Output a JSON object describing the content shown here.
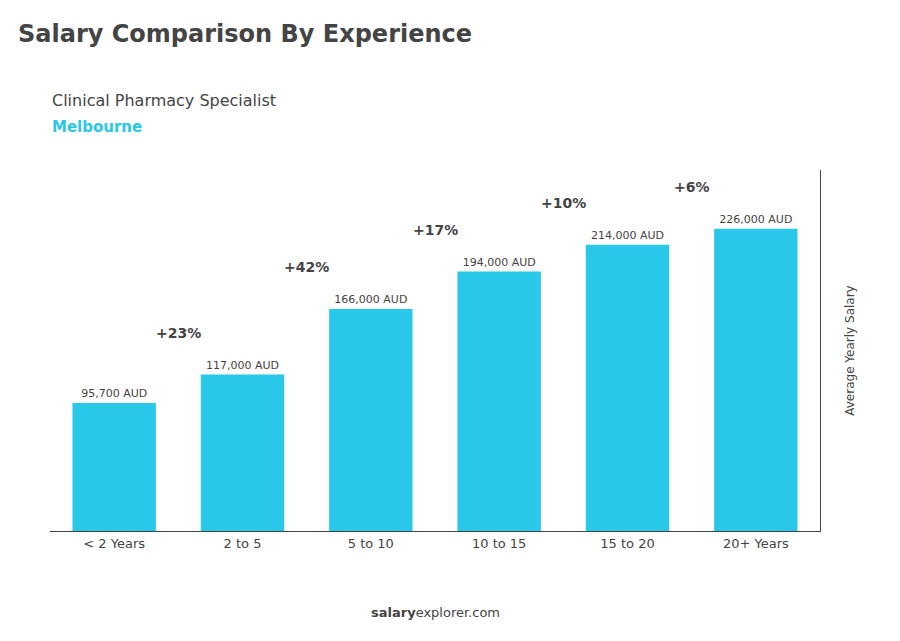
{
  "chart_data": {
    "type": "bar",
    "title": "Salary Comparison By Experience",
    "subtitle": "Clinical Pharmacy Specialist",
    "annotations": [
      "Melbourne"
    ],
    "footer": [
      "salary",
      "explorer.com"
    ],
    "ylabel": "Average Yearly Salary",
    "categories": [
      "< 2 Years",
      "2 to 5",
      "5 to 10",
      "10 to 15",
      "15 to 20",
      "20+ Years"
    ],
    "values": [
      95700,
      117000,
      166000,
      194000,
      214000,
      226000
    ],
    "value_labels": [
      "95,700 AUD",
      "117,000 AUD",
      "166,000 AUD",
      "194,000 AUD",
      "214,000 AUD",
      "226,000 AUD"
    ],
    "data_labels": true,
    "change_labels": [
      "+23%",
      "+42%",
      "+17%",
      "+10%",
      "+6%"
    ],
    "color": "#29c8e8",
    "ylim": [
      0,
      270000
    ],
    "grid": false,
    "tick_labels": "x"
  }
}
